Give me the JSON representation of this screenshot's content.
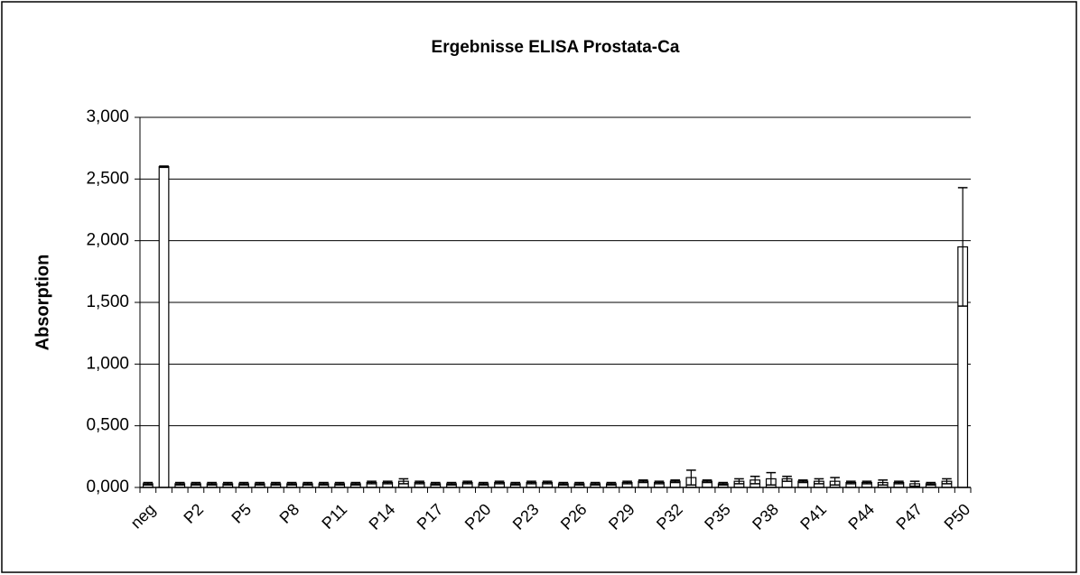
{
  "chart_data": {
    "type": "bar",
    "title": "Ergebnisse ELISA Prostata-Ca",
    "y_label": "Absorption",
    "categories": [
      "neg",
      null,
      null,
      "P2",
      null,
      null,
      "P5",
      null,
      null,
      "P8",
      null,
      null,
      "P11",
      null,
      null,
      "P14",
      null,
      null,
      "P17",
      null,
      null,
      "P20",
      null,
      null,
      "P23",
      null,
      null,
      "P26",
      null,
      null,
      "P29",
      null,
      null,
      "P32",
      null,
      null,
      "P35",
      null,
      null,
      "P38",
      null,
      null,
      "P41",
      null,
      null,
      "P44",
      null,
      null,
      "P47",
      null,
      null,
      "P50"
    ],
    "values": [
      0.03,
      2.6,
      0.03,
      0.03,
      0.03,
      0.03,
      0.03,
      0.03,
      0.03,
      0.03,
      0.03,
      0.03,
      0.03,
      0.03,
      0.04,
      0.04,
      0.05,
      0.04,
      0.03,
      0.03,
      0.04,
      0.03,
      0.04,
      0.03,
      0.04,
      0.04,
      0.03,
      0.03,
      0.03,
      0.03,
      0.04,
      0.05,
      0.04,
      0.05,
      0.08,
      0.05,
      0.03,
      0.05,
      0.06,
      0.07,
      0.07,
      0.05,
      0.05,
      0.05,
      0.04,
      0.04,
      0.04,
      0.04,
      0.03,
      0.03,
      0.05,
      1.95
    ],
    "errors": [
      0.01,
      0.005,
      0.01,
      0.01,
      0.01,
      0.01,
      0.01,
      0.01,
      0.01,
      0.01,
      0.01,
      0.01,
      0.01,
      0.01,
      0.01,
      0.01,
      0.02,
      0.01,
      0.01,
      0.01,
      0.01,
      0.01,
      0.01,
      0.01,
      0.01,
      0.01,
      0.01,
      0.01,
      0.01,
      0.01,
      0.01,
      0.01,
      0.01,
      0.01,
      0.06,
      0.01,
      0.01,
      0.02,
      0.03,
      0.05,
      0.02,
      0.01,
      0.02,
      0.03,
      0.01,
      0.01,
      0.02,
      0.01,
      0.02,
      0.01,
      0.02,
      0.48
    ],
    "color": "#ffffff",
    "ylim": [
      0,
      3
    ],
    "yticks": [
      {
        "value": 0,
        "label": "0,000"
      },
      {
        "value": 0.5,
        "label": "0,500"
      },
      {
        "value": 1,
        "label": "1,000"
      },
      {
        "value": 1.5,
        "label": "1,500"
      },
      {
        "value": 2,
        "label": "2,000"
      },
      {
        "value": 2.5,
        "label": "2,500"
      },
      {
        "value": 3,
        "label": "3,000"
      }
    ],
    "grid": true
  }
}
